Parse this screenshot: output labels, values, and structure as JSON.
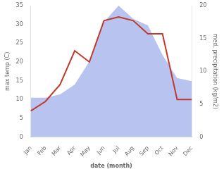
{
  "chart_data": {
    "type": "line",
    "categories": [
      "Jan",
      "Feb",
      "Mar",
      "Apr",
      "May",
      "Jun",
      "Jul",
      "Aug",
      "Sep",
      "Oct",
      "Nov",
      "Dec"
    ],
    "series": [
      {
        "type": "area",
        "color": "#b8c4ef",
        "axis": "y2",
        "values": [
          6.0,
          6.0,
          6.5,
          8.0,
          11.5,
          17.5,
          20.0,
          18.0,
          17.0,
          12.5,
          9.0,
          8.5
        ]
      },
      {
        "type": "line",
        "color": "#c0392b",
        "values": [
          7,
          9.5,
          14,
          23,
          20,
          31,
          32,
          31,
          27.5,
          27.5,
          10,
          10
        ]
      }
    ],
    "xlabel": "date (month)",
    "ylabel": "max temp (C)",
    "y2label": "med. precipitation (kg/m2)",
    "ylim": [
      0,
      35
    ],
    "yticks": [
      0,
      5,
      10,
      15,
      20,
      25,
      30,
      35
    ],
    "y2lim": [
      0,
      20
    ],
    "y2ticks": [
      0,
      5,
      10,
      15,
      20
    ],
    "grid": false
  }
}
